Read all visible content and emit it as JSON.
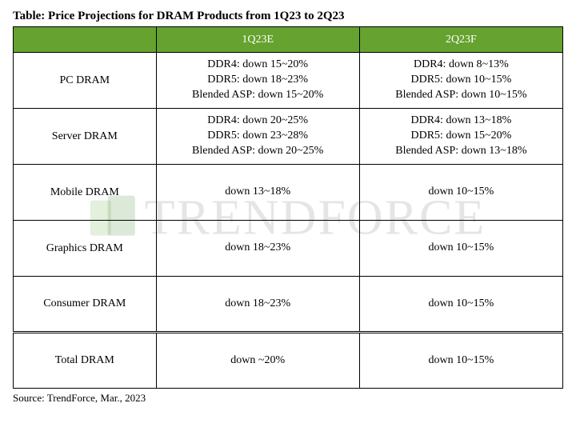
{
  "title": "Table: Price Projections for DRAM Products from 1Q23 to 2Q23",
  "source": "Source: TrendForce, Mar., 2023",
  "watermark_text": "TRENDFORCE",
  "colors": {
    "header_bg": "#66a22f",
    "header_text": "#ffffff",
    "border": "#000000",
    "watermark": "rgba(0,0,0,0.10)"
  },
  "table": {
    "columns": [
      "",
      "1Q23E",
      "2Q23F"
    ],
    "rows": [
      {
        "category": "PC DRAM",
        "q1": [
          "DDR4: down 15~20%",
          "DDR5: down 18~23%",
          "Blended ASP: down 15~20%"
        ],
        "q2": [
          "DDR4: down 8~13%",
          "DDR5: down 10~15%",
          "Blended ASP: down 10~15%"
        ]
      },
      {
        "category": "Server DRAM",
        "q1": [
          "DDR4: down 20~25%",
          "DDR5: down 23~28%",
          "Blended ASP: down 20~25%"
        ],
        "q2": [
          "DDR4: down 13~18%",
          "DDR5: down 15~20%",
          "Blended ASP: down 13~18%"
        ]
      },
      {
        "category": "Mobile DRAM",
        "q1": [
          "down 13~18%"
        ],
        "q2": [
          "down 10~15%"
        ]
      },
      {
        "category": "Graphics DRAM",
        "q1": [
          "down 18~23%"
        ],
        "q2": [
          "down 10~15%"
        ]
      },
      {
        "category": "Consumer DRAM",
        "q1": [
          "down 18~23%"
        ],
        "q2": [
          "down 10~15%"
        ]
      },
      {
        "category": "Total DRAM",
        "separator": true,
        "q1": [
          "down ~20%"
        ],
        "q2": [
          "down 10~15%"
        ]
      }
    ]
  }
}
